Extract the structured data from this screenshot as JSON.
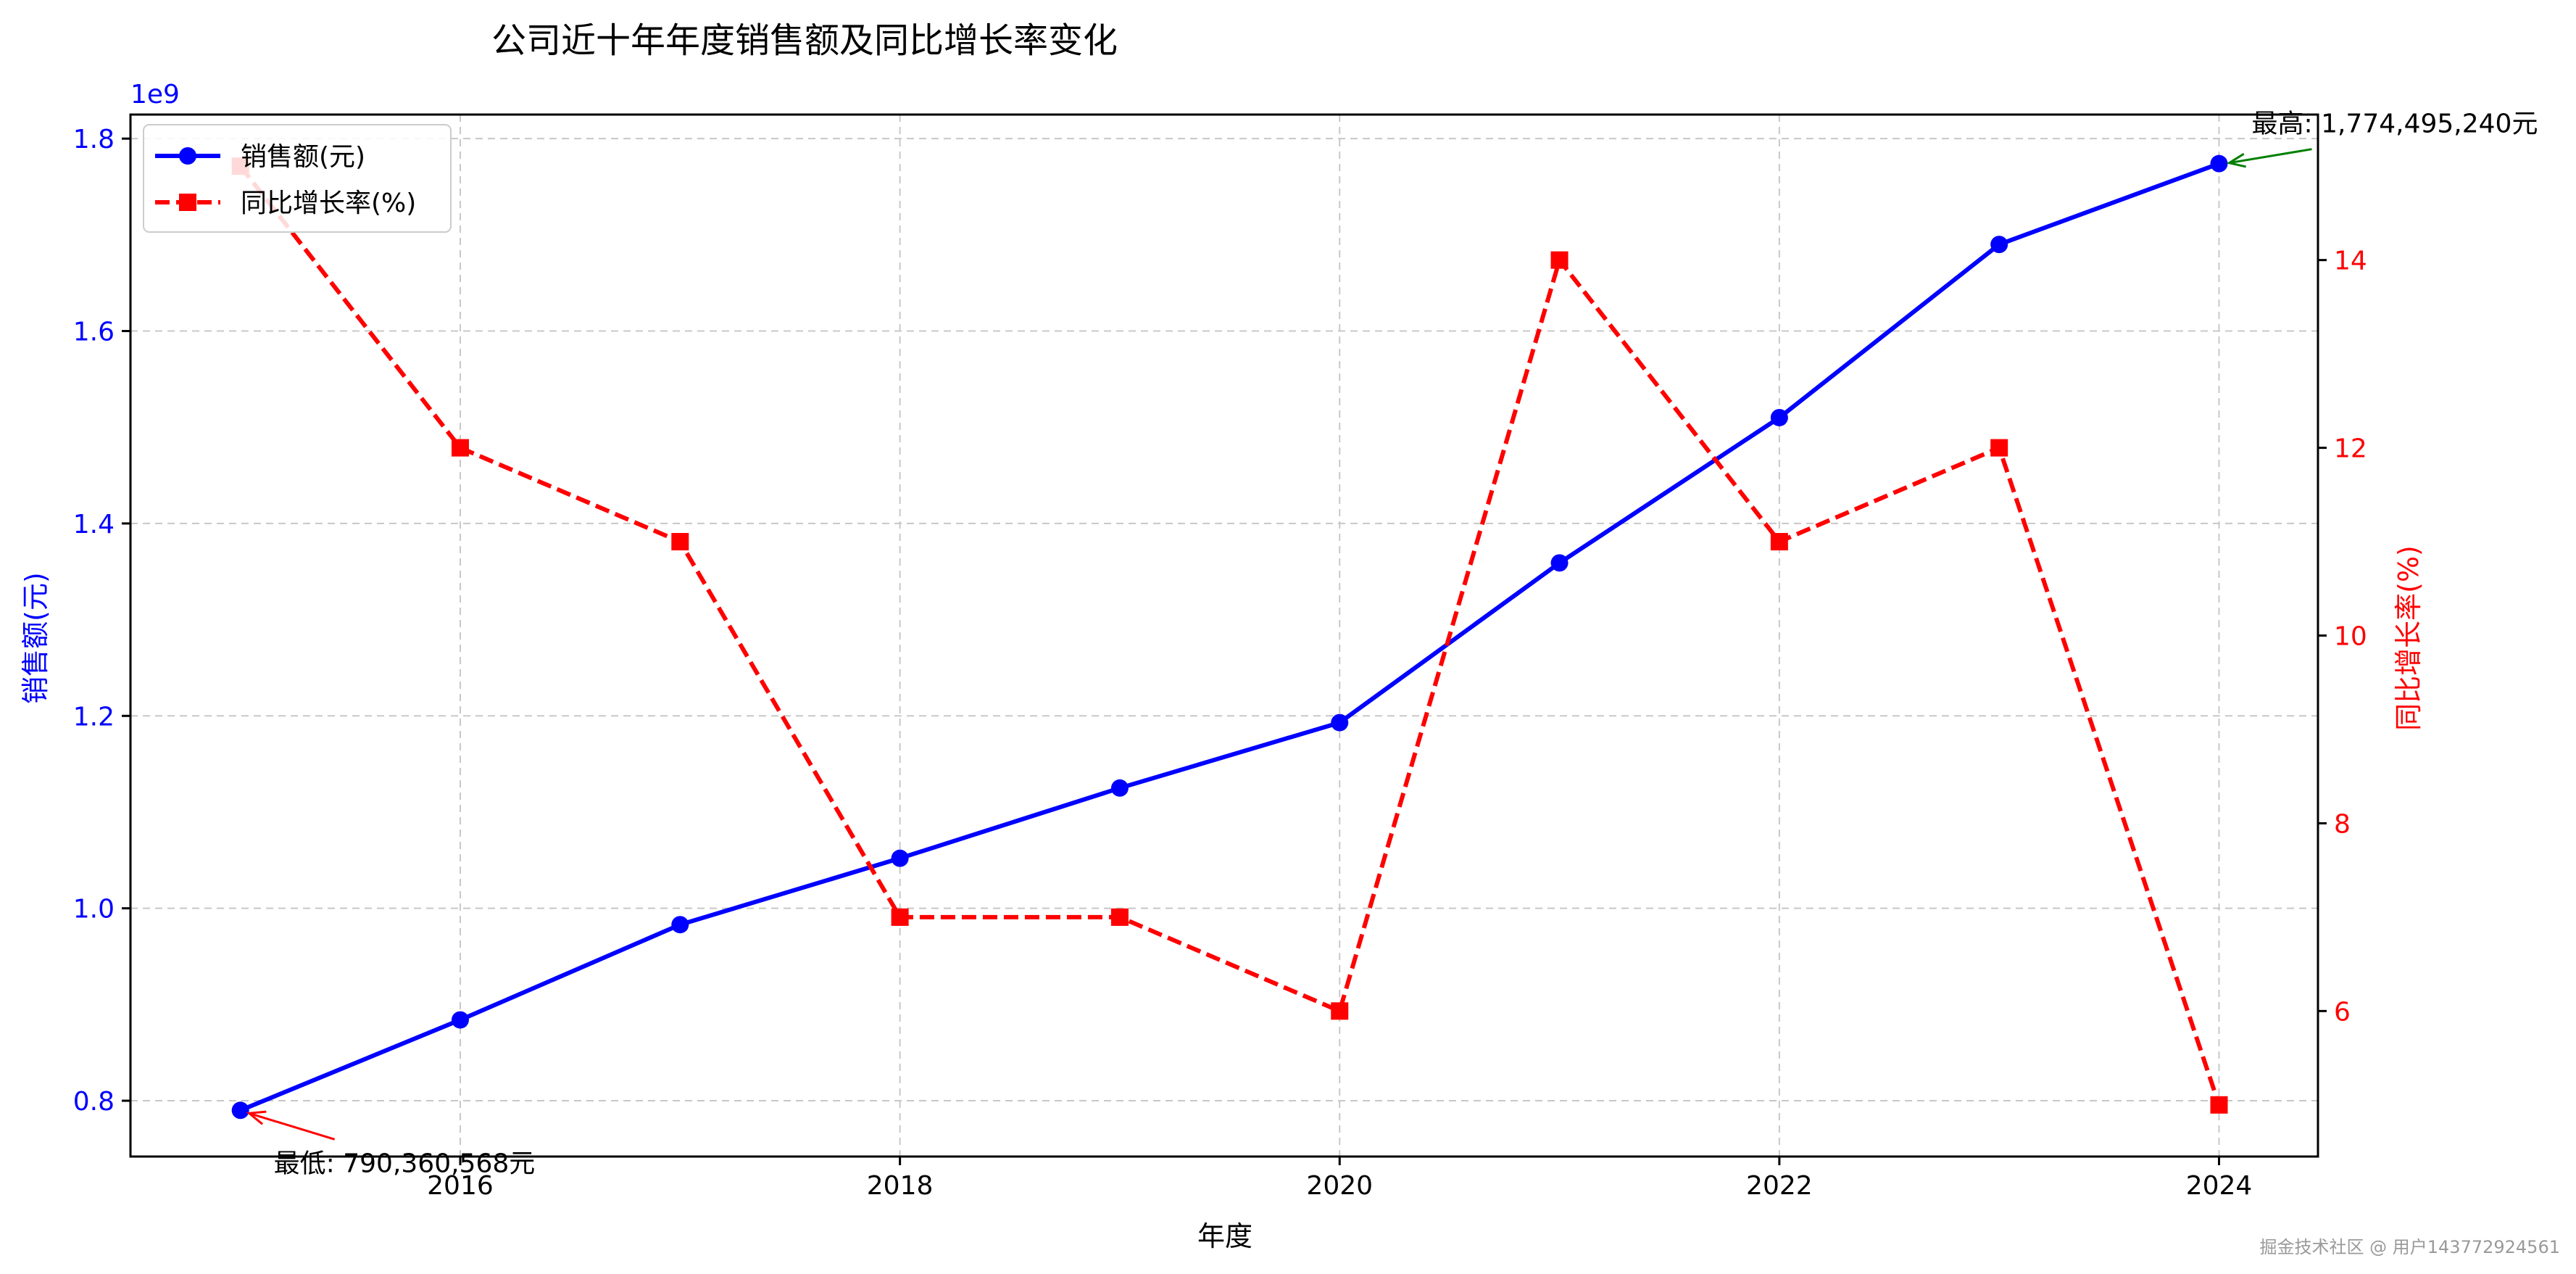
{
  "chart_data": {
    "type": "line",
    "title": "公司近十年年度销售额及同比增长率变化",
    "xlabel": "年度",
    "ylabel_left": "销售额(元)",
    "ylabel_right": "同比增长率(%)",
    "left_axis_offset_label": "1e9",
    "x": [
      2015,
      2016,
      2017,
      2018,
      2019,
      2020,
      2021,
      2022,
      2023,
      2024
    ],
    "x_ticks": [
      "2016",
      "2018",
      "2020",
      "2022",
      "2024"
    ],
    "xlim": [
      2014.5,
      2024.45
    ],
    "ylim_left": [
      0.742,
      1.825
    ],
    "ylim_right": [
      4.45,
      15.55
    ],
    "left_ticks": [
      "0.8",
      "1.0",
      "1.2",
      "1.4",
      "1.6",
      "1.8"
    ],
    "right_ticks": [
      "6",
      "8",
      "10",
      "12",
      "14"
    ],
    "grid": true,
    "legend_position": "top-left",
    "series": [
      {
        "name": "销售额(元)",
        "axis": "left",
        "color": "#0000ff",
        "marker": "circle",
        "style": "solid",
        "values": [
          0.79,
          0.884,
          0.983,
          1.052,
          1.125,
          1.193,
          1.359,
          1.51,
          1.69,
          1.774
        ]
      },
      {
        "name": "同比增长率(%)",
        "axis": "right",
        "color": "#ff0000",
        "marker": "square",
        "style": "dashed",
        "values": [
          15,
          12,
          11,
          7,
          7,
          6,
          14,
          11,
          12,
          5
        ]
      }
    ],
    "annotations": [
      {
        "text": "最低: 790,360,568元",
        "x": 2015,
        "y": 0.79,
        "axis": "left",
        "color": "#ff0000"
      },
      {
        "text": "最高: 1,774,495,240元",
        "x": 2024,
        "y": 1.774,
        "axis": "left",
        "color": "#008000"
      }
    ]
  },
  "watermark": "掘金技术社区 @ 用户143772924561"
}
